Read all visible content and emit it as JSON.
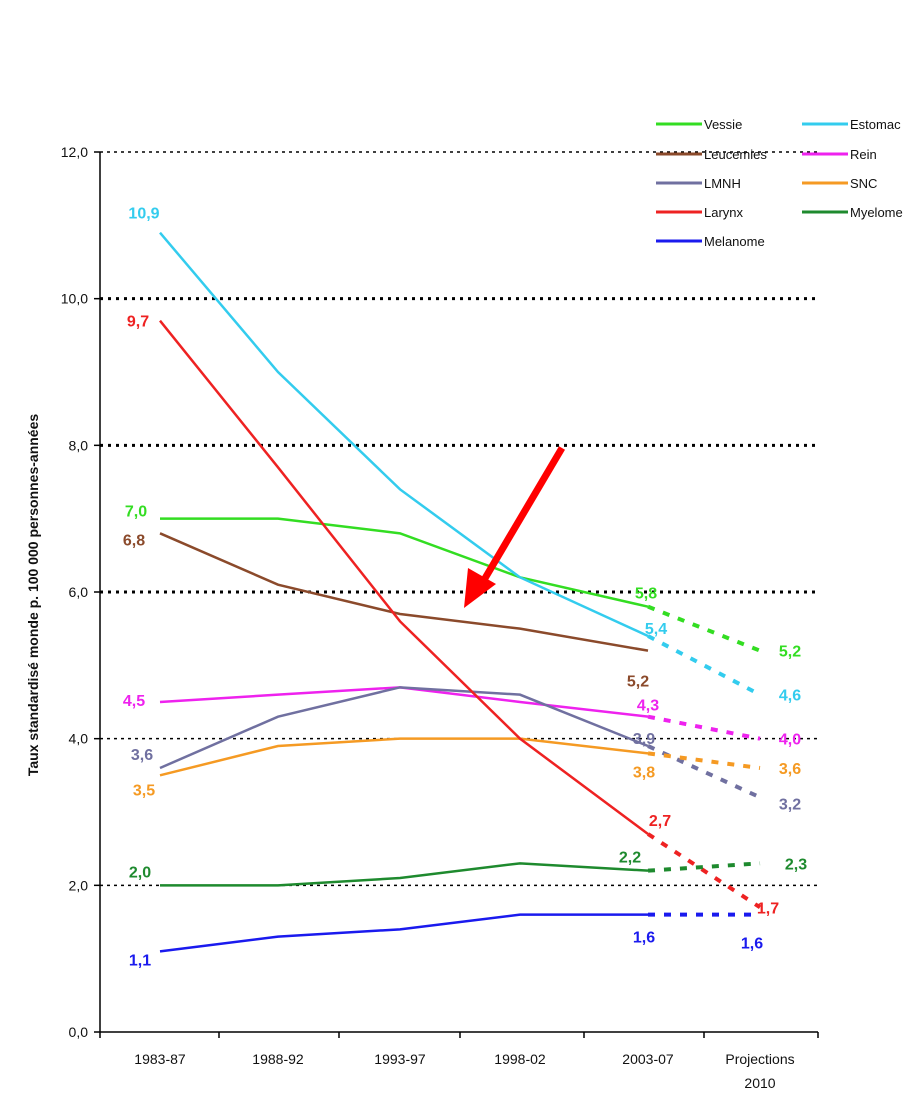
{
  "chart_data": {
    "type": "line",
    "title": "",
    "xlabel": "",
    "ylabel": "Taux standardisé monde p. 100 000 personnes-années",
    "categories": [
      "1983-87",
      "1988-92",
      "1993-97",
      "1998-02",
      "2003-07",
      "Projections 2010"
    ],
    "category_lines": [
      [
        "1983-87"
      ],
      [
        "1988-92"
      ],
      [
        "1993-97"
      ],
      [
        "1998-02"
      ],
      [
        "2003-07"
      ],
      [
        "Projections",
        "2010"
      ]
    ],
    "ylim": [
      0,
      12
    ],
    "yticks": [
      0,
      2,
      4,
      6,
      8,
      10,
      12
    ],
    "ytick_labels": [
      "0,0",
      "2,0",
      "4,0",
      "6,0",
      "8,0",
      "10,0",
      "12,0"
    ],
    "grid": "horizontal dotted",
    "legend_position": "top-right",
    "projection_style": "dashed",
    "series": [
      {
        "name": "Vessie",
        "color": "#33dd22",
        "values": [
          7.0,
          7.0,
          6.8,
          6.2,
          5.8,
          5.2
        ],
        "labels": {
          "0": "7,0",
          "4": "5,8",
          "5": "5,2"
        }
      },
      {
        "name": "Estomac",
        "color": "#33ccee",
        "values": [
          10.9,
          9.0,
          7.4,
          6.2,
          5.4,
          4.6
        ],
        "labels": {
          "0": "10,9",
          "4": "5,4",
          "5": "4,6"
        }
      },
      {
        "name": "Leucemies",
        "color": "#8b4a2b",
        "values": [
          6.8,
          6.1,
          5.7,
          5.5,
          5.2,
          null
        ],
        "labels": {
          "0": "6,8",
          "4": "5,2"
        }
      },
      {
        "name": "Rein",
        "color": "#ee22ee",
        "values": [
          4.5,
          4.6,
          4.7,
          4.5,
          4.3,
          4.0
        ],
        "labels": {
          "0": "4,5",
          "4": "4,3",
          "5": "4,0"
        }
      },
      {
        "name": "LMNH",
        "color": "#7070a0",
        "values": [
          3.6,
          4.3,
          4.7,
          4.6,
          3.9,
          3.2
        ],
        "labels": {
          "0": "3,6",
          "4": "3,9",
          "5": "3,2"
        }
      },
      {
        "name": "SNC",
        "color": "#f59a23",
        "values": [
          3.5,
          3.9,
          4.0,
          4.0,
          3.8,
          3.6
        ],
        "labels": {
          "0": "3,5",
          "4": "3,8",
          "5": "3,6"
        }
      },
      {
        "name": "Larynx",
        "color": "#ee2222",
        "values": [
          9.7,
          7.7,
          5.6,
          4.0,
          2.7,
          1.7
        ],
        "labels": {
          "0": "9,7",
          "4": "2,7",
          "5": "1,7"
        }
      },
      {
        "name": "Myelome",
        "color": "#1e8a2e",
        "values": [
          2.0,
          2.0,
          2.1,
          2.3,
          2.2,
          2.3
        ],
        "labels": {
          "0": "2,0",
          "4": "2,2",
          "5": "2,3"
        }
      },
      {
        "name": "Melanome",
        "color": "#1a1aee",
        "values": [
          1.1,
          1.3,
          1.4,
          1.6,
          1.6,
          1.6
        ],
        "labels": {
          "0": "1,1",
          "4": "1,6",
          "5": "1,6"
        }
      }
    ],
    "annotations": [
      {
        "type": "arrow",
        "color": "#ff0000"
      }
    ]
  }
}
